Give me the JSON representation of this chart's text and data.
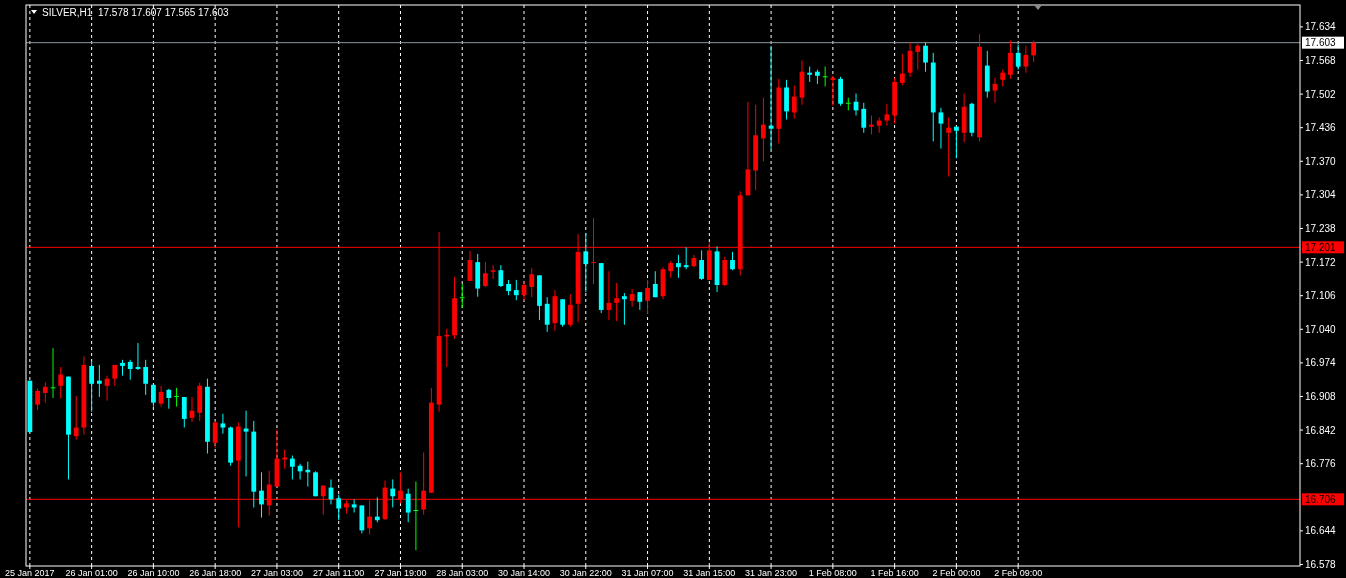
{
  "chart_data": {
    "type": "candlestick",
    "title": "SILVER,H1  17.578 17.607 17.565 17.603",
    "categories": [
      "25 Jan 2017",
      null,
      null,
      null,
      null,
      null,
      null,
      null,
      "26 Jan 01:00",
      null,
      null,
      null,
      null,
      null,
      null,
      null,
      "26 Jan 10:00",
      null,
      null,
      null,
      null,
      null,
      null,
      null,
      "26 Jan 18:00",
      null,
      null,
      null,
      null,
      null,
      null,
      null,
      "27 Jan 03:00",
      null,
      null,
      null,
      null,
      null,
      null,
      null,
      "27 Jan 11:00",
      null,
      null,
      null,
      null,
      null,
      null,
      null,
      "27 Jan 19:00",
      null,
      null,
      null,
      null,
      null,
      null,
      null,
      "28 Jan 03:00",
      null,
      null,
      null,
      null,
      null,
      null,
      null,
      "30 Jan 14:00",
      null,
      null,
      null,
      null,
      null,
      null,
      null,
      "30 Jan 22:00",
      null,
      null,
      null,
      null,
      null,
      null,
      null,
      "31 Jan 07:00",
      null,
      null,
      null,
      null,
      null,
      null,
      null,
      "31 Jan 15:00",
      null,
      null,
      null,
      null,
      null,
      null,
      null,
      "31 Jan 23:00",
      null,
      null,
      null,
      null,
      null,
      null,
      null,
      "1 Feb 08:00",
      null,
      null,
      null,
      null,
      null,
      null,
      null,
      "1 Feb 16:00",
      null,
      null,
      null,
      null,
      null,
      null,
      null,
      "2 Feb 00:00",
      null,
      null,
      null,
      null,
      null,
      null,
      null,
      "2 Feb 09:00",
      null,
      null,
      null,
      null,
      null,
      null,
      null,
      null,
      null,
      null,
      null,
      null,
      null,
      null,
      null,
      null,
      null,
      null,
      null,
      null,
      null,
      null,
      null,
      null,
      null,
      null,
      null,
      null,
      null,
      null,
      null,
      null,
      null,
      null,
      null,
      null
    ],
    "ohlc": [
      [
        16.939,
        16.939,
        16.838,
        16.838
      ],
      [
        16.892,
        16.924,
        16.881,
        16.919
      ],
      [
        16.915,
        16.936,
        16.896,
        16.927
      ],
      [
        16.926,
        17.003,
        16.905,
        16.926
      ],
      [
        16.929,
        16.966,
        16.904,
        16.951
      ],
      [
        16.947,
        16.947,
        16.745,
        16.833
      ],
      [
        16.83,
        16.909,
        16.823,
        16.847
      ],
      [
        16.847,
        16.987,
        16.833,
        16.97
      ],
      [
        16.968,
        16.978,
        16.878,
        16.933
      ],
      [
        16.939,
        16.97,
        16.907,
        16.933
      ],
      [
        16.929,
        16.949,
        16.9,
        16.943
      ],
      [
        16.943,
        16.97,
        16.929,
        16.97
      ],
      [
        16.974,
        16.98,
        16.949,
        16.968
      ],
      [
        16.976,
        16.98,
        16.941,
        16.962
      ],
      [
        16.966,
        17.013,
        16.96,
        16.962
      ],
      [
        16.966,
        16.98,
        16.911,
        16.933
      ],
      [
        16.931,
        16.931,
        16.888,
        16.896
      ],
      [
        16.894,
        16.929,
        16.888,
        16.917
      ],
      [
        16.921,
        16.923,
        16.884,
        16.905
      ],
      [
        16.909,
        16.925,
        16.888,
        16.909
      ],
      [
        16.907,
        16.907,
        16.847,
        16.864
      ],
      [
        16.866,
        16.907,
        16.858,
        16.88
      ],
      [
        16.876,
        16.935,
        16.86,
        16.929
      ],
      [
        16.927,
        16.943,
        16.796,
        16.819
      ],
      [
        16.817,
        16.86,
        16.806,
        16.857
      ],
      [
        16.855,
        16.874,
        16.835,
        16.847
      ],
      [
        16.847,
        16.849,
        16.772,
        16.778
      ],
      [
        16.782,
        16.857,
        16.651,
        16.849
      ],
      [
        16.845,
        16.88,
        16.751,
        16.839
      ],
      [
        16.839,
        16.86,
        16.69,
        16.721
      ],
      [
        16.723,
        16.759,
        16.67,
        16.696
      ],
      [
        16.694,
        16.762,
        16.674,
        16.735
      ],
      [
        16.731,
        16.843,
        16.731,
        16.786
      ],
      [
        16.784,
        16.804,
        16.766,
        16.788
      ],
      [
        16.786,
        16.792,
        16.745,
        16.77
      ],
      [
        16.772,
        16.776,
        16.745,
        16.761
      ],
      [
        16.764,
        16.78,
        16.731,
        16.759
      ],
      [
        16.759,
        16.761,
        16.712,
        16.712
      ],
      [
        16.712,
        16.733,
        16.676,
        16.733
      ],
      [
        16.729,
        16.745,
        16.696,
        16.706
      ],
      [
        16.708,
        16.715,
        16.665,
        16.688
      ],
      [
        16.69,
        16.704,
        16.678,
        16.698
      ],
      [
        16.696,
        16.706,
        16.68,
        16.69
      ],
      [
        16.694,
        16.694,
        16.639,
        16.645
      ],
      [
        16.649,
        16.704,
        16.637,
        16.672
      ],
      [
        16.672,
        16.71,
        16.661,
        16.665
      ],
      [
        16.667,
        16.743,
        16.665,
        16.729
      ],
      [
        16.727,
        16.745,
        16.69,
        16.712
      ],
      [
        16.706,
        16.759,
        16.698,
        16.723
      ],
      [
        16.717,
        16.727,
        16.661,
        16.68
      ],
      [
        16.685,
        16.741,
        16.606,
        16.685
      ],
      [
        16.686,
        16.798,
        16.676,
        16.723
      ],
      [
        16.719,
        16.925,
        16.719,
        16.896
      ],
      [
        16.892,
        17.231,
        16.878,
        17.027
      ],
      [
        17.026,
        17.041,
        16.966,
        17.029
      ],
      [
        17.028,
        17.143,
        17.021,
        17.101
      ],
      [
        17.103,
        17.129,
        17.082,
        17.103
      ],
      [
        17.135,
        17.194,
        17.135,
        17.176
      ],
      [
        17.172,
        17.188,
        17.104,
        17.12
      ],
      [
        17.125,
        17.172,
        17.123,
        17.15
      ],
      [
        17.153,
        17.166,
        17.139,
        17.156
      ],
      [
        17.156,
        17.166,
        17.123,
        17.125
      ],
      [
        17.129,
        17.137,
        17.107,
        17.115
      ],
      [
        17.117,
        17.137,
        17.097,
        17.107
      ],
      [
        17.107,
        17.133,
        17.096,
        17.127
      ],
      [
        17.123,
        17.16,
        17.103,
        17.148
      ],
      [
        17.146,
        17.146,
        17.058,
        17.086
      ],
      [
        17.09,
        17.103,
        17.035,
        17.049
      ],
      [
        17.052,
        17.117,
        17.037,
        17.105
      ],
      [
        17.099,
        17.099,
        17.045,
        17.049
      ],
      [
        17.049,
        17.109,
        17.045,
        17.088
      ],
      [
        17.09,
        17.227,
        17.054,
        17.192
      ],
      [
        17.193,
        17.229,
        17.113,
        17.168
      ],
      [
        17.171,
        17.258,
        17.129,
        17.172
      ],
      [
        17.17,
        17.17,
        17.072,
        17.078
      ],
      [
        17.078,
        17.154,
        17.058,
        17.092
      ],
      [
        17.092,
        17.131,
        17.056,
        17.101
      ],
      [
        17.105,
        17.111,
        17.049,
        17.099
      ],
      [
        17.096,
        17.119,
        17.084,
        17.109
      ],
      [
        17.113,
        17.113,
        17.078,
        17.094
      ],
      [
        17.096,
        17.137,
        17.07,
        17.121
      ],
      [
        17.129,
        17.154,
        17.103,
        17.103
      ],
      [
        17.105,
        17.162,
        17.099,
        17.158
      ],
      [
        17.154,
        17.174,
        17.141,
        17.17
      ],
      [
        17.17,
        17.186,
        17.141,
        17.162
      ],
      [
        17.166,
        17.201,
        17.158,
        17.162
      ],
      [
        17.164,
        17.186,
        17.162,
        17.18
      ],
      [
        17.176,
        17.195,
        17.137,
        17.139
      ],
      [
        17.137,
        17.211,
        17.137,
        17.195
      ],
      [
        17.193,
        17.203,
        17.113,
        17.127
      ],
      [
        17.127,
        17.182,
        17.125,
        17.176
      ],
      [
        17.176,
        17.192,
        17.156,
        17.158
      ],
      [
        17.158,
        17.311,
        17.146,
        17.303
      ],
      [
        17.303,
        17.487,
        17.303,
        17.354
      ],
      [
        17.352,
        17.481,
        17.313,
        17.421
      ],
      [
        17.415,
        17.495,
        17.37,
        17.442
      ],
      [
        17.44,
        17.597,
        17.393,
        17.434
      ],
      [
        17.434,
        17.532,
        17.405,
        17.515
      ],
      [
        17.515,
        17.53,
        17.452,
        17.468
      ],
      [
        17.466,
        17.519,
        17.454,
        17.497
      ],
      [
        17.495,
        17.568,
        17.481,
        17.546
      ],
      [
        17.544,
        17.556,
        17.526,
        17.54
      ],
      [
        17.546,
        17.55,
        17.522,
        17.538
      ],
      [
        17.537,
        17.556,
        17.517,
        17.537
      ],
      [
        17.53,
        17.538,
        17.479,
        17.534
      ],
      [
        17.532,
        17.536,
        17.479,
        17.483
      ],
      [
        17.485,
        17.495,
        17.47,
        17.485
      ],
      [
        17.487,
        17.503,
        17.46,
        17.47
      ],
      [
        17.473,
        17.485,
        17.426,
        17.436
      ],
      [
        17.438,
        17.46,
        17.423,
        17.442
      ],
      [
        17.44,
        17.456,
        17.426,
        17.45
      ],
      [
        17.45,
        17.483,
        17.44,
        17.462
      ],
      [
        17.46,
        17.534,
        17.444,
        17.526
      ],
      [
        17.524,
        17.581,
        17.519,
        17.542
      ],
      [
        17.544,
        17.603,
        17.536,
        17.587
      ],
      [
        17.585,
        17.601,
        17.55,
        17.597
      ],
      [
        17.597,
        17.603,
        17.546,
        17.564
      ],
      [
        17.564,
        17.583,
        17.409,
        17.466
      ],
      [
        17.466,
        17.475,
        17.395,
        17.444
      ],
      [
        17.426,
        17.456,
        17.34,
        17.436
      ],
      [
        17.438,
        17.438,
        17.376,
        17.43
      ],
      [
        17.426,
        17.503,
        17.407,
        17.477
      ],
      [
        17.483,
        17.485,
        17.419,
        17.426
      ],
      [
        17.417,
        17.62,
        17.409,
        17.595
      ],
      [
        17.558,
        17.587,
        17.495,
        17.507
      ],
      [
        17.509,
        17.534,
        17.485,
        17.522
      ],
      [
        17.53,
        17.55,
        17.517,
        17.544
      ],
      [
        17.54,
        17.607,
        17.532,
        17.583
      ],
      [
        17.583,
        17.599,
        17.55,
        17.556
      ],
      [
        17.556,
        17.597,
        17.544,
        17.579
      ],
      [
        17.578,
        17.607,
        17.565,
        17.603
      ],
      null,
      null,
      null,
      null,
      null,
      null,
      null,
      null,
      null,
      null,
      null,
      null,
      null,
      null,
      null,
      null,
      null,
      null,
      null,
      null,
      null,
      null,
      null,
      null,
      null,
      null,
      null,
      null,
      null,
      null,
      null,
      null,
      null,
      null
    ],
    "colors": [
      "#00ffff",
      "#ff0000",
      "#ff0000",
      "#00ff00",
      "#ff0000",
      "#00ffff",
      "#ff0000",
      "#ff0000",
      "#00ffff",
      "#00ffff",
      "#ff0000",
      "#ff0000",
      "#00ffff",
      "#00ffff",
      "#00ffff",
      "#00ffff",
      "#00ffff",
      "#ff0000",
      "#00ffff",
      "#00ff00",
      "#00ffff",
      "#ff0000",
      "#ff0000",
      "#00ffff",
      "#ff0000",
      "#00ffff",
      "#00ffff",
      "#ff0000",
      "#00ffff",
      "#00ffff",
      "#00ffff",
      "#ff0000",
      "#ff0000",
      "#ff0000",
      "#00ffff",
      "#00ffff",
      "#00ffff",
      "#00ffff",
      "#ff0000",
      "#00ffff",
      "#00ffff",
      "#ff0000",
      "#00ffff",
      "#00ffff",
      "#ff0000",
      "#00ffff",
      "#ff0000",
      "#00ffff",
      "#ff0000",
      "#00ffff",
      "#00ff00",
      "#ff0000",
      "#ff0000",
      "#ff0000",
      "#ff0000",
      "#ff0000",
      "#00ff00",
      "#ff0000",
      "#00ffff",
      "#ff0000",
      "#ff0000",
      "#00ffff",
      "#00ffff",
      "#00ffff",
      "#ff0000",
      "#ff0000",
      "#00ffff",
      "#00ffff",
      "#ff0000",
      "#00ffff",
      "#ff0000",
      "#ff0000",
      "#00ffff",
      "#ff0000",
      "#00ffff",
      "#ff0000",
      "#ff0000",
      "#00ffff",
      "#ff0000",
      "#00ffff",
      "#ff0000",
      "#00ffff",
      "#ff0000",
      "#ff0000",
      "#00ffff",
      "#00ffff",
      "#ff0000",
      "#00ffff",
      "#ff0000",
      "#00ffff",
      "#ff0000",
      "#00ffff",
      "#ff0000",
      "#ff0000",
      "#ff0000",
      "#ff0000",
      "#00ffff",
      "#ff0000",
      "#00ffff",
      "#ff0000",
      "#ff0000",
      "#00ffff",
      "#00ffff",
      "#00ff00",
      "#ff0000",
      "#00ffff",
      "#00ff00",
      "#00ffff",
      "#00ffff",
      "#ff0000",
      "#ff0000",
      "#ff0000",
      "#ff0000",
      "#ff0000",
      "#ff0000",
      "#ff0000",
      "#00ffff",
      "#00ffff",
      "#00ffff",
      "#ff0000",
      "#00ffff",
      "#ff0000",
      "#00ffff",
      "#ff0000",
      "#00ffff",
      "#ff0000",
      "#ff0000",
      "#ff0000",
      "#00ffff",
      "#ff0000",
      "#ff0000",
      null,
      null,
      null,
      null,
      null,
      null,
      null,
      null,
      null,
      null,
      null,
      null,
      null,
      null,
      null,
      null,
      null,
      null,
      null,
      null,
      null,
      null,
      null,
      null,
      null,
      null,
      null,
      null,
      null,
      null,
      null,
      null,
      null,
      null
    ],
    "ylim": [
      16.575,
      17.677
    ],
    "yticks": [
      17.634,
      17.568,
      17.502,
      17.436,
      {
        "value": 17.37,
        "label": "17.370"
      },
      17.304,
      17.238,
      17.172,
      17.106,
      {
        "value": 17.04,
        "label": "17.040"
      },
      16.974,
      16.908,
      16.842,
      16.776,
      16.644,
      16.578
    ],
    "ref_lines": [
      {
        "axis": "y",
        "value": 17.603,
        "label": "17.603",
        "color": "#8a97a4"
      },
      {
        "axis": "y",
        "value": 17.201,
        "label": "17.201",
        "color": "#ff0000"
      },
      {
        "axis": "y",
        "value": 16.706,
        "label": "16.706",
        "color": "#ff0000"
      }
    ],
    "grid": "x"
  }
}
